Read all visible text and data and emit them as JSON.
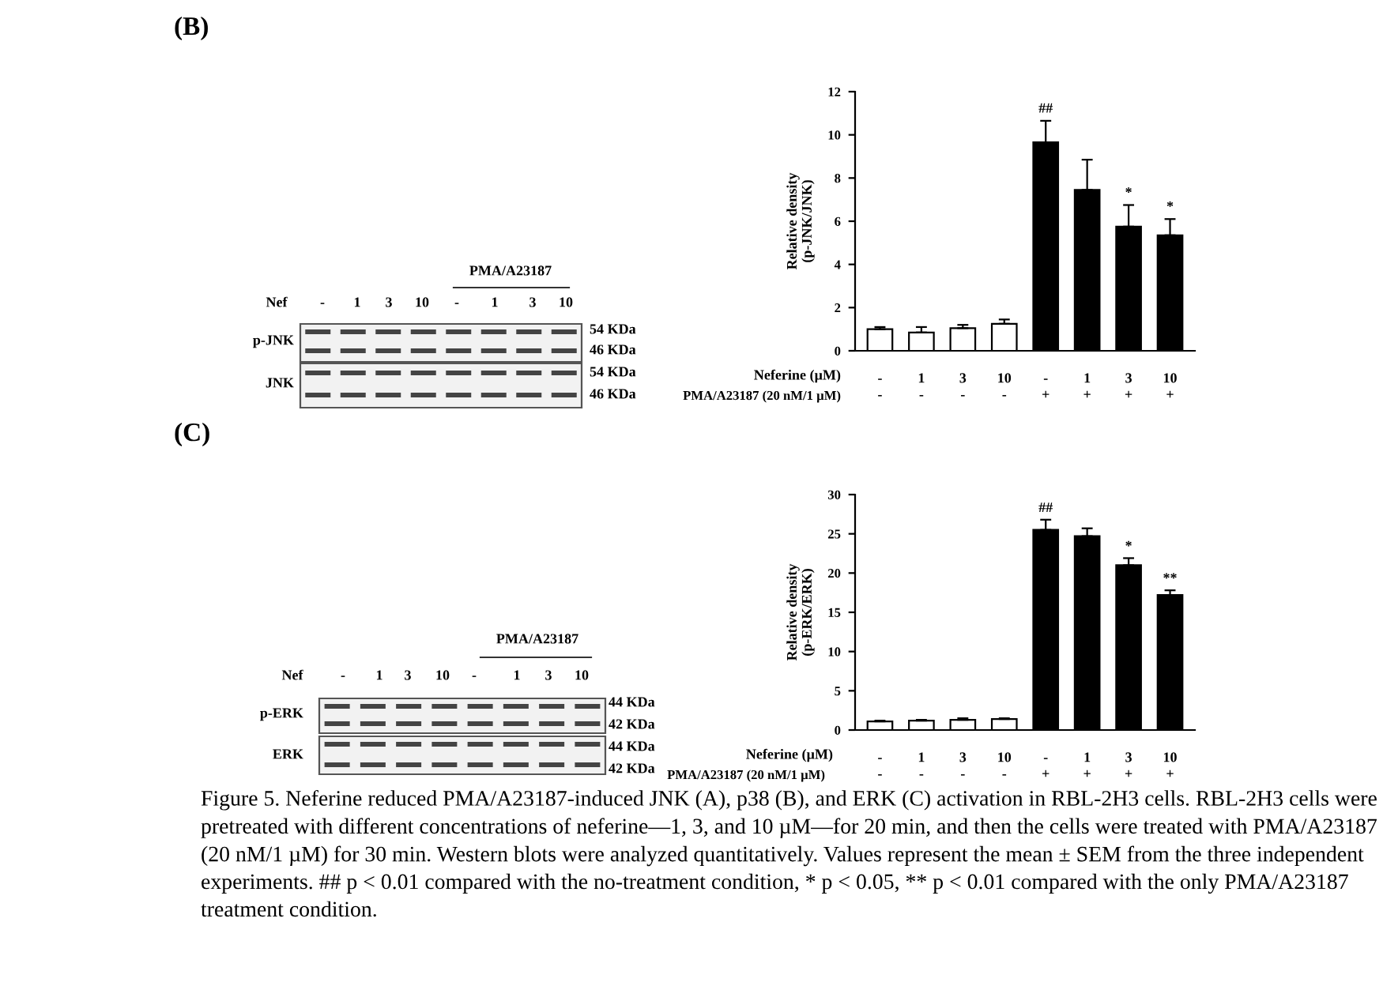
{
  "chart_data": [
    {
      "type": "bar",
      "ylabel": "Relative density\n(p-JNK/JNK)",
      "categories": [
        "-\n-",
        "1\n-",
        "3\n-",
        "10\n-",
        "-\n+",
        "1\n+",
        "3\n+",
        "10\n+"
      ],
      "values": [
        1.0,
        0.85,
        1.05,
        1.25,
        9.65,
        7.45,
        5.75,
        5.35
      ],
      "errors": [
        [
          1.0,
          1.1
        ],
        [
          0.85,
          1.1
        ],
        [
          1.05,
          1.2
        ],
        [
          1.25,
          1.45
        ],
        [
          9.65,
          10.65
        ],
        [
          7.45,
          8.85
        ],
        [
          5.75,
          6.75
        ],
        [
          5.35,
          6.1
        ]
      ],
      "colors": [
        "#ffffff",
        "#ffffff",
        "#ffffff",
        "#ffffff",
        "#000000",
        "#000000",
        "#000000",
        "#000000"
      ],
      "ylim": [
        0,
        12
      ],
      "yticks": [
        0,
        2,
        4,
        6,
        8,
        10,
        12
      ],
      "grid": false,
      "legend": false,
      "annotations": [
        "Neferine (µM)",
        "PMA/A23187 (20 nM/1 µM)",
        "(B)",
        "PMA/A23187",
        "Nef",
        "-",
        "1",
        "3",
        "10",
        "-",
        "1",
        "3",
        "10",
        "p-JNK",
        "JNK",
        "54 KDa",
        "46 KDa",
        "54 KDa",
        "46 KDa",
        "##",
        "*",
        "*"
      ]
    },
    {
      "type": "bar",
      "ylabel": "Relative density\n(p-ERK/ERK)",
      "categories": [
        "-\n-",
        "1\n-",
        "3\n-",
        "10\n-",
        "-\n+",
        "1\n+",
        "3\n+",
        "10\n+"
      ],
      "values": [
        1.1,
        1.2,
        1.3,
        1.4,
        25.5,
        24.7,
        21.0,
        17.2
      ],
      "errors": [
        [
          1.1,
          1.2
        ],
        [
          1.2,
          1.3
        ],
        [
          1.3,
          1.5
        ],
        [
          1.4,
          1.5
        ],
        [
          25.5,
          26.8
        ],
        [
          24.7,
          25.7
        ],
        [
          21.0,
          21.9
        ],
        [
          17.2,
          17.8
        ]
      ],
      "colors": [
        "#ffffff",
        "#ffffff",
        "#ffffff",
        "#ffffff",
        "#000000",
        "#000000",
        "#000000",
        "#000000"
      ],
      "ylim": [
        0,
        30
      ],
      "yticks": [
        0,
        5,
        10,
        15,
        20,
        25,
        30
      ],
      "grid": false,
      "legend": false,
      "annotations": [
        "Neferine (µM)",
        "PMA/A23187 (20 nM/1 µM)",
        "(C)",
        "PMA/A23187",
        "Nef",
        "-",
        "1",
        "3",
        "10",
        "-",
        "1",
        "3",
        "10",
        "p-ERK",
        "ERK",
        "44 KDa",
        "42 KDa",
        "44 KDa",
        "42 KDa",
        "Figure 5. Neferine reduced PMA/A23187-induced JNK (A), p38 (B), and ERK (C) activation in RBL-2H3 cells. RBL-2H3 cells were pretreated with different concentrations of neferine—1, 3, and 10 µM—for 20 min, and then the cells were treated with PMA/A23187 (20 nM/1 µM) for 30 min. Western blots were analyzed quantitatively. Values represent the mean ± SEM from the three independent experiments. ## p < 0.01 compared with the no-treatment condition, * p < 0.05, ** p < 0.01 compared with the only PMA/A23187 treatment condition.",
        "##",
        "*",
        "**"
      ]
    }
  ]
}
